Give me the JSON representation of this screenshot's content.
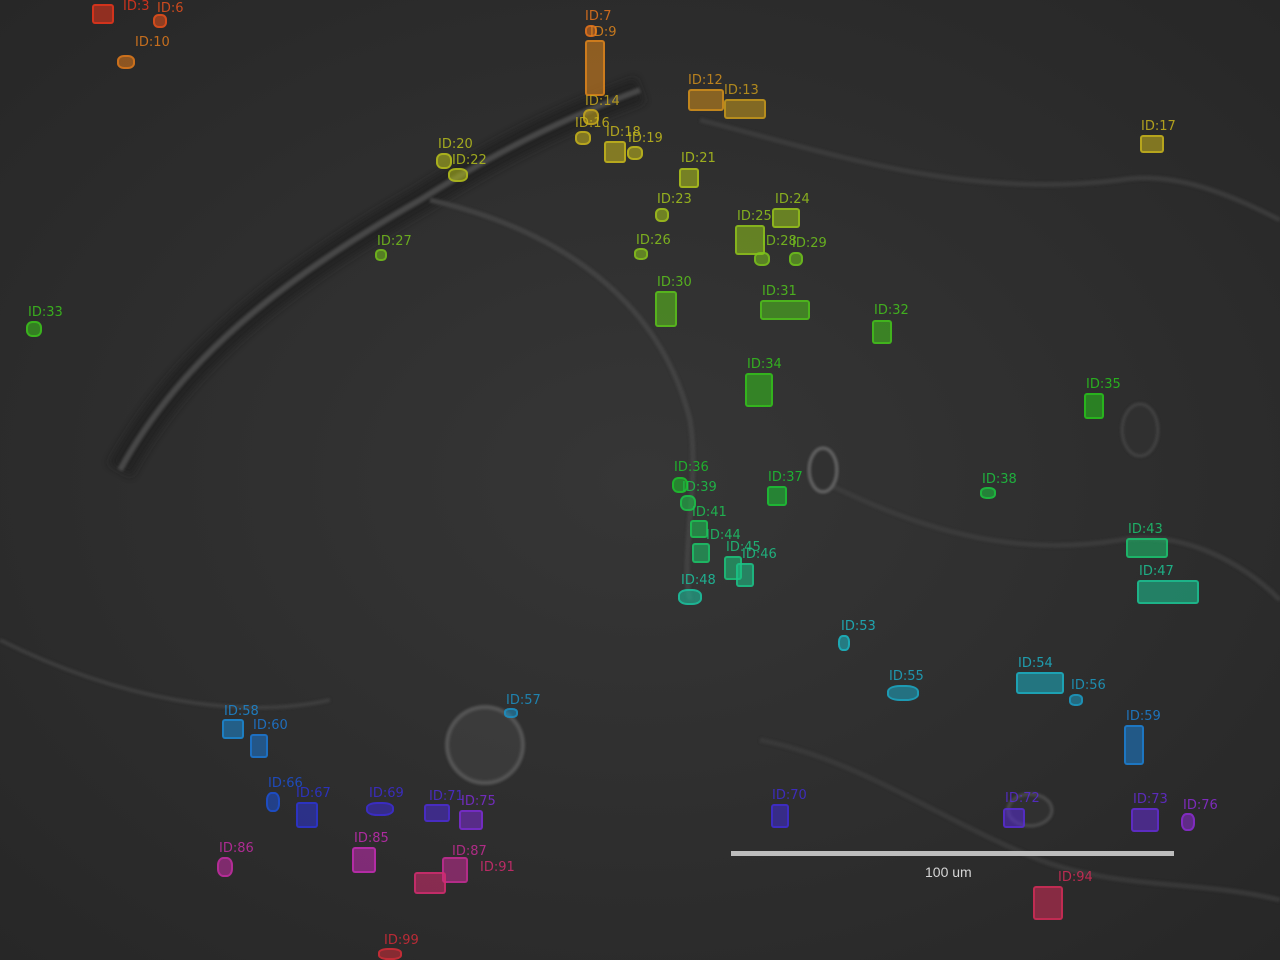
{
  "image": {
    "scale_bar_label": "100 um",
    "colors": {
      "background": "#2e2e2e",
      "membrane": "#4a4a4a",
      "scale_bar": "#bdbdbd"
    }
  },
  "detections": [
    {
      "id": "ID:3",
      "color": "#e8351c"
    },
    {
      "id": "ID:6",
      "color": "#e8501c"
    },
    {
      "id": "ID:10",
      "color": "#e07a1c"
    },
    {
      "id": "ID:7",
      "color": "#e8741c"
    },
    {
      "id": "ID:9",
      "color": "#e0861c"
    },
    {
      "id": "ID:12",
      "color": "#d4901c"
    },
    {
      "id": "ID:13",
      "color": "#c89a1c"
    },
    {
      "id": "ID:14",
      "color": "#c8a81c"
    },
    {
      "id": "ID:16",
      "color": "#c8b41c"
    },
    {
      "id": "ID:18",
      "color": "#c8b81c"
    },
    {
      "id": "ID:19",
      "color": "#c4bc1c"
    },
    {
      "id": "ID:17",
      "color": "#c8b41c"
    },
    {
      "id": "ID:20",
      "color": "#b8c01c"
    },
    {
      "id": "ID:22",
      "color": "#b4c01c"
    },
    {
      "id": "ID:21",
      "color": "#b0c41c"
    },
    {
      "id": "ID:23",
      "color": "#a4c41c"
    },
    {
      "id": "ID:24",
      "color": "#98c41c"
    },
    {
      "id": "ID:25",
      "color": "#90c41c"
    },
    {
      "id": "ID:26",
      "color": "#88c41c"
    },
    {
      "id": "ID:27",
      "color": "#74c01c"
    },
    {
      "id": "ID:28",
      "color": "#7cc41c"
    },
    {
      "id": "ID:29",
      "color": "#70c41c"
    },
    {
      "id": "ID:30",
      "color": "#5cc41c"
    },
    {
      "id": "ID:31",
      "color": "#50c41c"
    },
    {
      "id": "ID:32",
      "color": "#44c41c"
    },
    {
      "id": "ID:33",
      "color": "#3cc41c"
    },
    {
      "id": "ID:34",
      "color": "#34c41c"
    },
    {
      "id": "ID:35",
      "color": "#28c41c"
    },
    {
      "id": "ID:36",
      "color": "#1cc42c"
    },
    {
      "id": "ID:37",
      "color": "#1cc434"
    },
    {
      "id": "ID:38",
      "color": "#1cc440"
    },
    {
      "id": "ID:39",
      "color": "#1cc448"
    },
    {
      "id": "ID:41",
      "color": "#1cc454"
    },
    {
      "id": "ID:44",
      "color": "#1cc468"
    },
    {
      "id": "ID:43",
      "color": "#1cc470"
    },
    {
      "id": "ID:45",
      "color": "#1cc47c"
    },
    {
      "id": "ID:46",
      "color": "#1cc488"
    },
    {
      "id": "ID:47",
      "color": "#1cc494"
    },
    {
      "id": "ID:48",
      "color": "#1cc4a0"
    },
    {
      "id": "ID:53",
      "color": "#1cb8c4"
    },
    {
      "id": "ID:54",
      "color": "#1cb0c4"
    },
    {
      "id": "ID:55",
      "color": "#1ca8c4"
    },
    {
      "id": "ID:56",
      "color": "#1c9cc4"
    },
    {
      "id": "ID:57",
      "color": "#1c90c4"
    },
    {
      "id": "ID:58",
      "color": "#1c88d4"
    },
    {
      "id": "ID:59",
      "color": "#1c80d4"
    },
    {
      "id": "ID:60",
      "color": "#1c78d4"
    },
    {
      "id": "ID:66",
      "color": "#1c50d4"
    },
    {
      "id": "ID:67",
      "color": "#2c34d4"
    },
    {
      "id": "ID:69",
      "color": "#3c2cd4"
    },
    {
      "id": "ID:70",
      "color": "#402cd4"
    },
    {
      "id": "ID:71",
      "color": "#4c2cd4"
    },
    {
      "id": "ID:72",
      "color": "#582cd4"
    },
    {
      "id": "ID:73",
      "color": "#642cd4"
    },
    {
      "id": "ID:75",
      "color": "#7c2cd4"
    },
    {
      "id": "ID:76",
      "color": "#8c2cd4"
    },
    {
      "id": "ID:85",
      "color": "#c42cb4"
    },
    {
      "id": "ID:86",
      "color": "#c42ca4"
    },
    {
      "id": "ID:87",
      "color": "#c42c94"
    },
    {
      "id": "ID:91",
      "color": "#d42c70"
    },
    {
      "id": "ID:94",
      "color": "#d42c58"
    },
    {
      "id": "ID:99",
      "color": "#d42c38"
    }
  ]
}
